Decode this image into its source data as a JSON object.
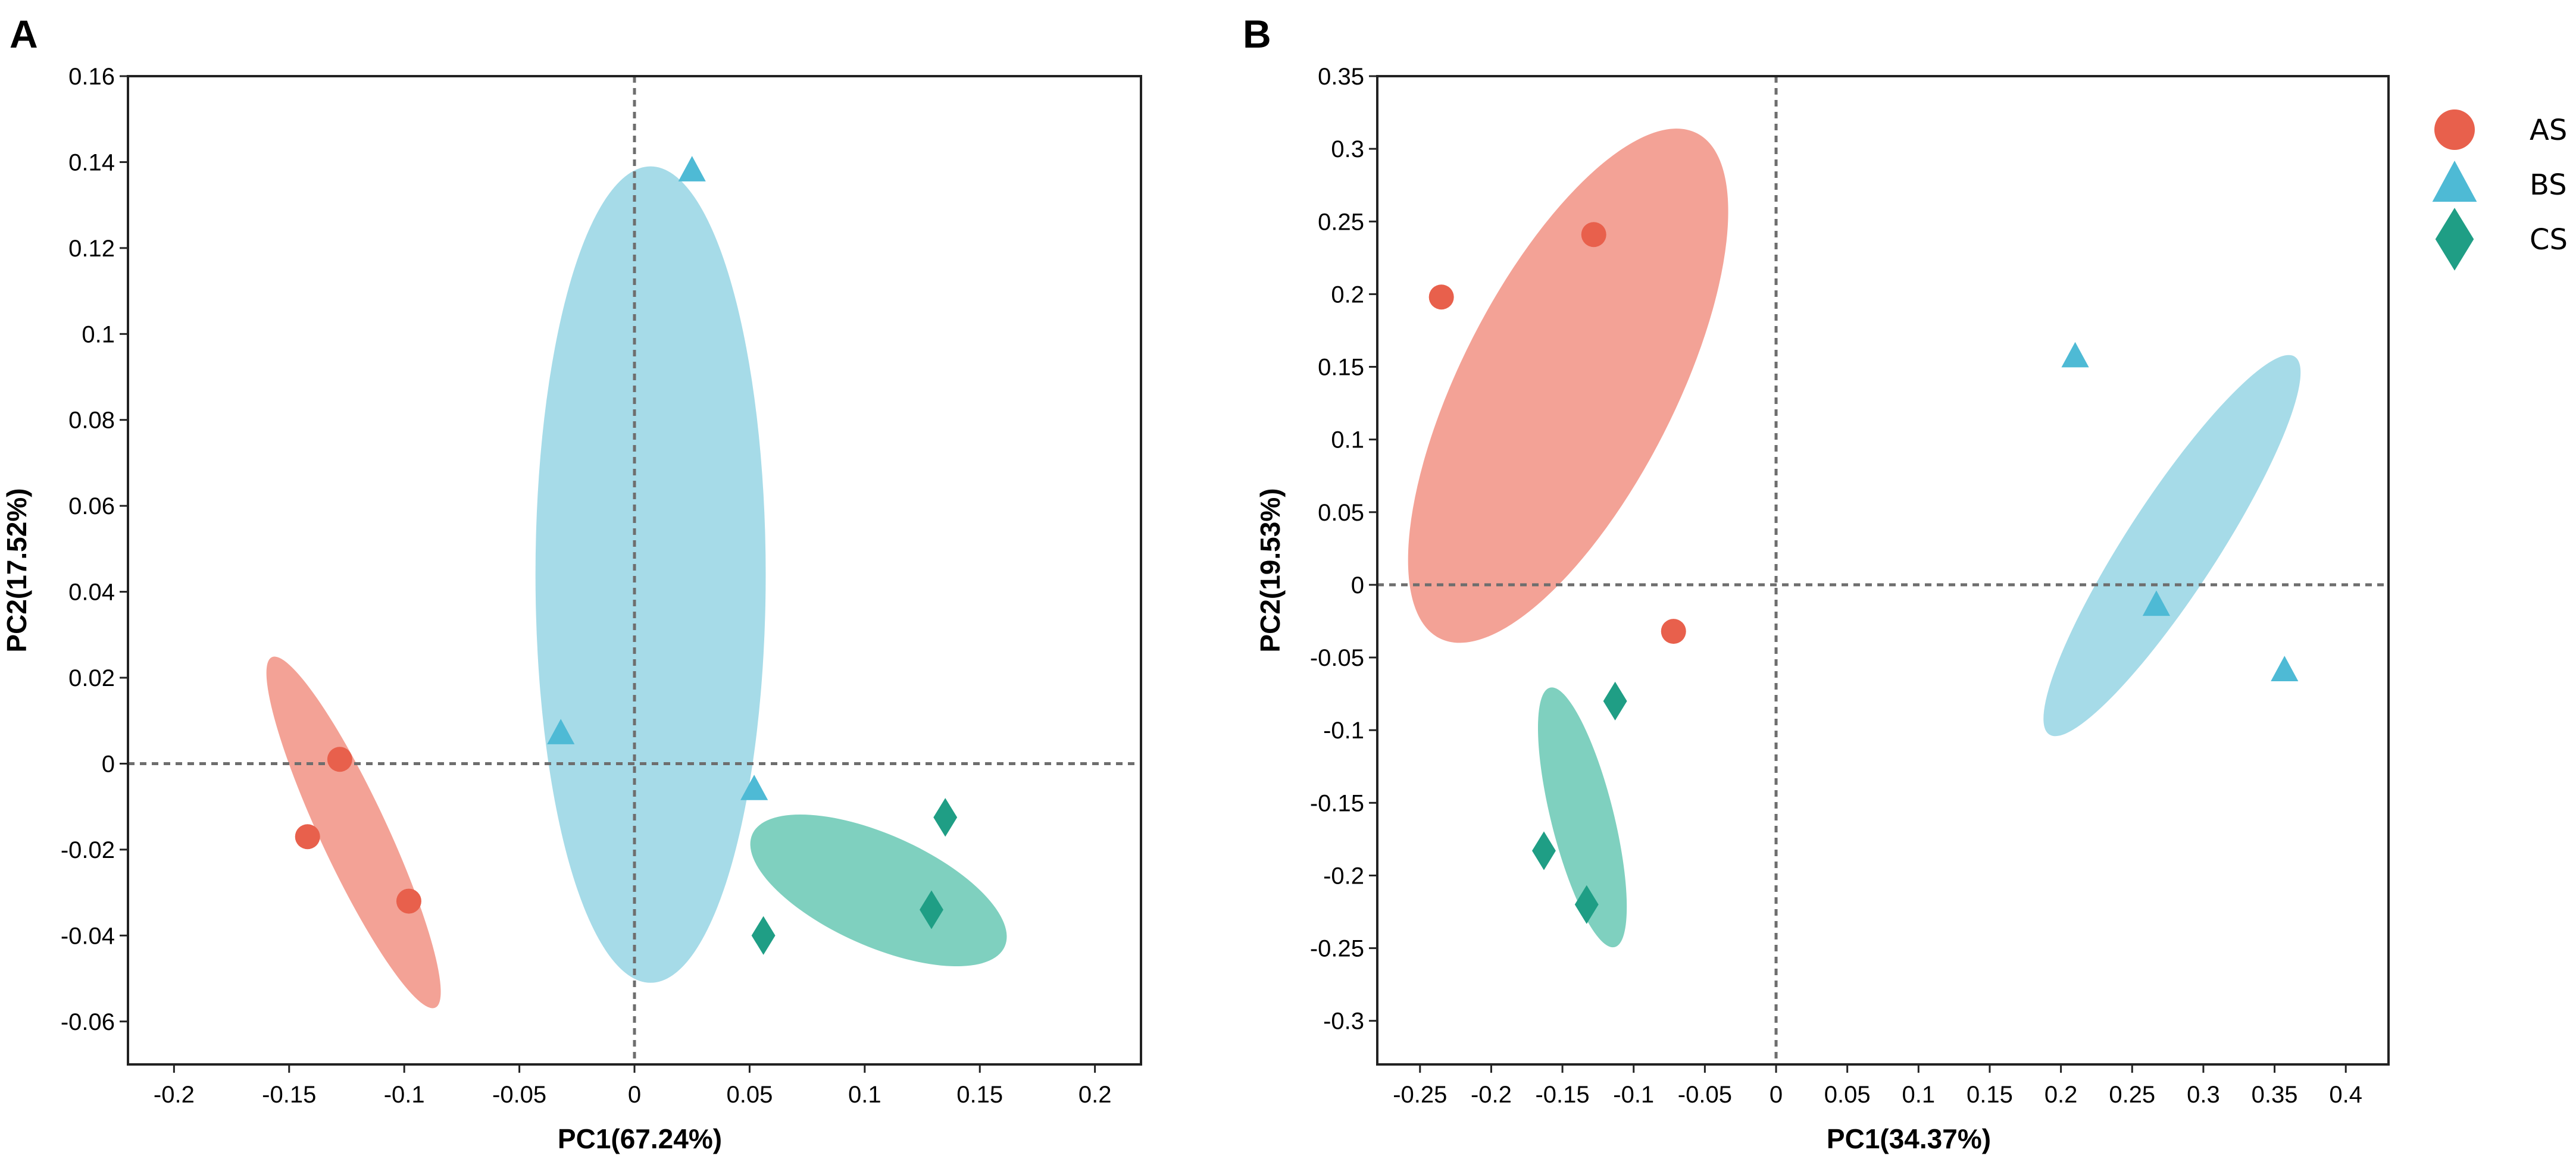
{
  "colors": {
    "AS": "#e8604c",
    "BS": "#4ebad5",
    "CS": "#1f9e85",
    "AS_fill": "#f3a296",
    "BS_fill": "#a6dbe8",
    "CS_fill": "#7fd0bf"
  },
  "legend": [
    {
      "group": "AS",
      "label": "AS",
      "shape": "circle"
    },
    {
      "group": "BS",
      "label": "BS",
      "shape": "triangle"
    },
    {
      "group": "CS",
      "label": "CS",
      "shape": "diamond"
    }
  ],
  "chart_data": [
    {
      "type": "scatter",
      "panel": "A",
      "xlabel": "PC1(67.24%)",
      "ylabel": "PC2(17.52%)",
      "xlim": [
        -0.22,
        0.22
      ],
      "ylim": [
        -0.07,
        0.16
      ],
      "xticks": [
        -0.2,
        -0.15,
        -0.1,
        -0.05,
        0,
        0.05,
        0.1,
        0.15,
        0.2
      ],
      "xtick_labels": [
        "-0.2",
        "-0.15",
        "-0.1",
        "-0.05",
        "0",
        "0.05",
        "0.1",
        "0.15",
        "0.2"
      ],
      "yticks": [
        -0.06,
        -0.04,
        -0.02,
        0,
        0.02,
        0.04,
        0.06,
        0.08,
        0.1,
        0.12,
        0.14,
        0.16
      ],
      "ytick_labels": [
        "-0.06",
        "-0.04",
        "-0.02",
        "0",
        "0.02",
        "0.04",
        "0.06",
        "0.08",
        "0.1",
        "0.12",
        "0.14",
        "0.16"
      ],
      "series": [
        {
          "name": "AS",
          "points": [
            [
              -0.128,
              0.001
            ],
            [
              -0.142,
              -0.017
            ],
            [
              -0.098,
              -0.032
            ]
          ],
          "ellipse": {
            "center": [
              -0.122,
              -0.016
            ],
            "rx": 0.0145,
            "ry": 0.045,
            "angle": 25
          }
        },
        {
          "name": "BS",
          "points": [
            [
              0.025,
              0.138
            ],
            [
              -0.032,
              0.007
            ],
            [
              0.052,
              -0.006
            ]
          ],
          "ellipse": {
            "center": [
              0.007,
              0.044
            ],
            "rx": 0.05,
            "ry": 0.095,
            "angle": 0
          }
        },
        {
          "name": "CS",
          "points": [
            [
              0.135,
              -0.0125
            ],
            [
              0.129,
              -0.034
            ],
            [
              0.056,
              -0.04
            ]
          ],
          "ellipse": {
            "center": [
              0.106,
              -0.0295
            ],
            "rx": 0.06,
            "ry": 0.013,
            "angle": -24
          }
        }
      ]
    },
    {
      "type": "scatter",
      "panel": "B",
      "xlabel": "PC1(34.37%)",
      "ylabel": "PC2(19.53%)",
      "xlim": [
        -0.28,
        0.43
      ],
      "ylim": [
        -0.33,
        0.35
      ],
      "xticks": [
        -0.25,
        -0.2,
        -0.15,
        -0.1,
        -0.05,
        0,
        0.05,
        0.1,
        0.15,
        0.2,
        0.25,
        0.3,
        0.35,
        0.4
      ],
      "xtick_labels": [
        "-0.25",
        "-0.2",
        "-0.15",
        "-0.1",
        "-0.05",
        "0",
        "0.05",
        "0.1",
        "0.15",
        "0.2",
        "0.25",
        "0.3",
        "0.35",
        "0.4"
      ],
      "yticks": [
        -0.3,
        -0.25,
        -0.2,
        -0.15,
        -0.1,
        -0.05,
        0,
        0.05,
        0.1,
        0.15,
        0.2,
        0.25,
        0.3,
        0.35
      ],
      "ytick_labels": [
        "-0.3",
        "-0.25",
        "-0.2",
        "-0.15",
        "-0.1",
        "-0.05",
        "0",
        "0.05",
        "0.1",
        "0.15",
        "0.2",
        "0.25",
        "0.3",
        "0.35"
      ],
      "series": [
        {
          "name": "AS",
          "points": [
            [
              -0.235,
              0.198
            ],
            [
              -0.128,
              0.241
            ],
            [
              -0.072,
              -0.032
            ]
          ],
          "ellipse": {
            "center": [
              -0.146,
              0.137
            ],
            "rx": 0.075,
            "ry": 0.195,
            "angle": -27
          }
        },
        {
          "name": "BS",
          "points": [
            [
              0.21,
              0.157
            ],
            [
              0.267,
              -0.014
            ],
            [
              0.357,
              -0.059
            ]
          ],
          "ellipse": {
            "center": [
              0.278,
              0.027
            ],
            "rx": 0.032,
            "ry": 0.155,
            "angle": -33
          }
        },
        {
          "name": "CS",
          "points": [
            [
              -0.113,
              -0.08
            ],
            [
              -0.163,
              -0.183
            ],
            [
              -0.133,
              -0.22
            ]
          ],
          "ellipse": {
            "center": [
              -0.136,
              -0.16
            ],
            "rx": 0.022,
            "ry": 0.092,
            "angle": 14
          }
        }
      ]
    }
  ]
}
